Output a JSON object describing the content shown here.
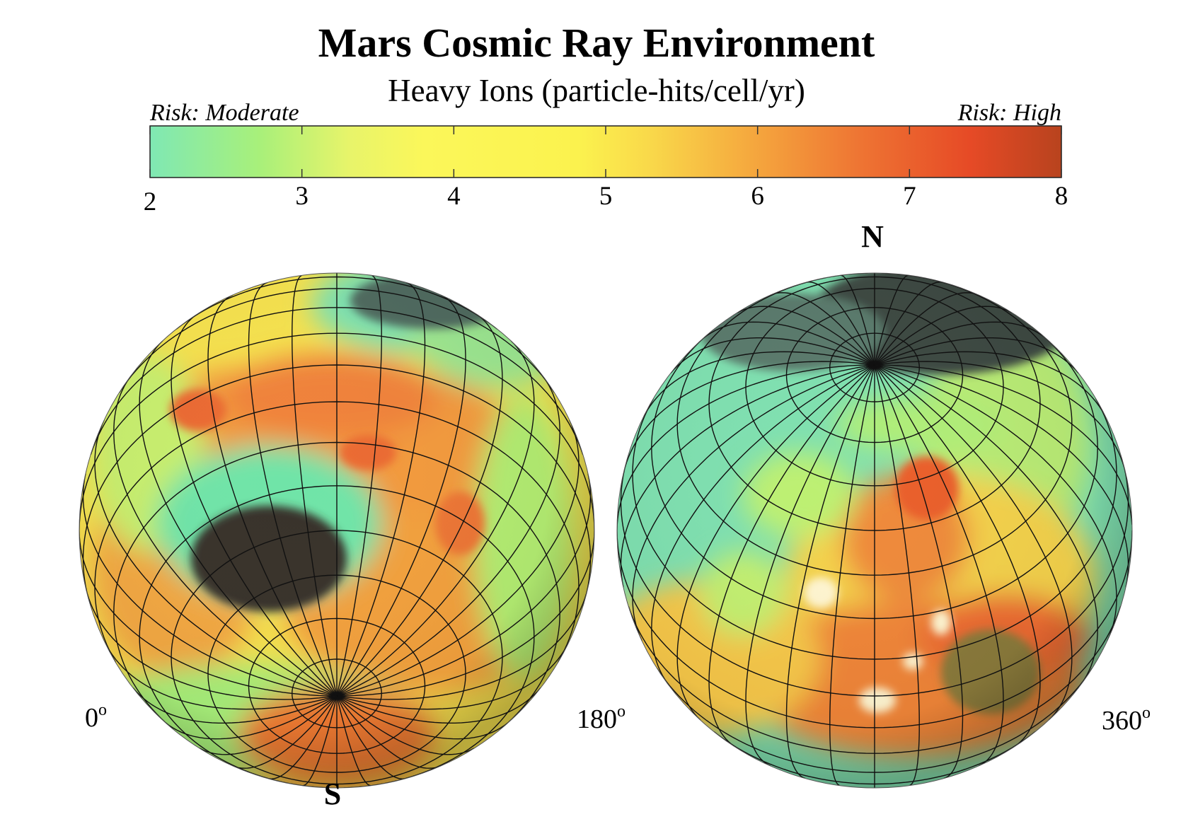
{
  "title": "Mars Cosmic Ray Environment",
  "subtitle": "Heavy Ions (particle-hits/cell/yr)",
  "colorbar": {
    "left_label": "Risk: Moderate",
    "right_label": "Risk: High",
    "ticks": [
      "2",
      "3",
      "4",
      "5",
      "6",
      "7",
      "8"
    ],
    "range": [
      2,
      8
    ],
    "colors": [
      "#7fe8b4",
      "#a8f07a",
      "#f2f75a",
      "#fbf24e",
      "#f7c743",
      "#f08a38",
      "#e64a26",
      "#b8431e"
    ]
  },
  "globes": {
    "left": {
      "pole_label": "S",
      "lon_start": "0",
      "lon_end": "180",
      "deg": "o"
    },
    "right": {
      "pole_label": "N",
      "lon_end": "360",
      "deg": "o"
    }
  }
}
